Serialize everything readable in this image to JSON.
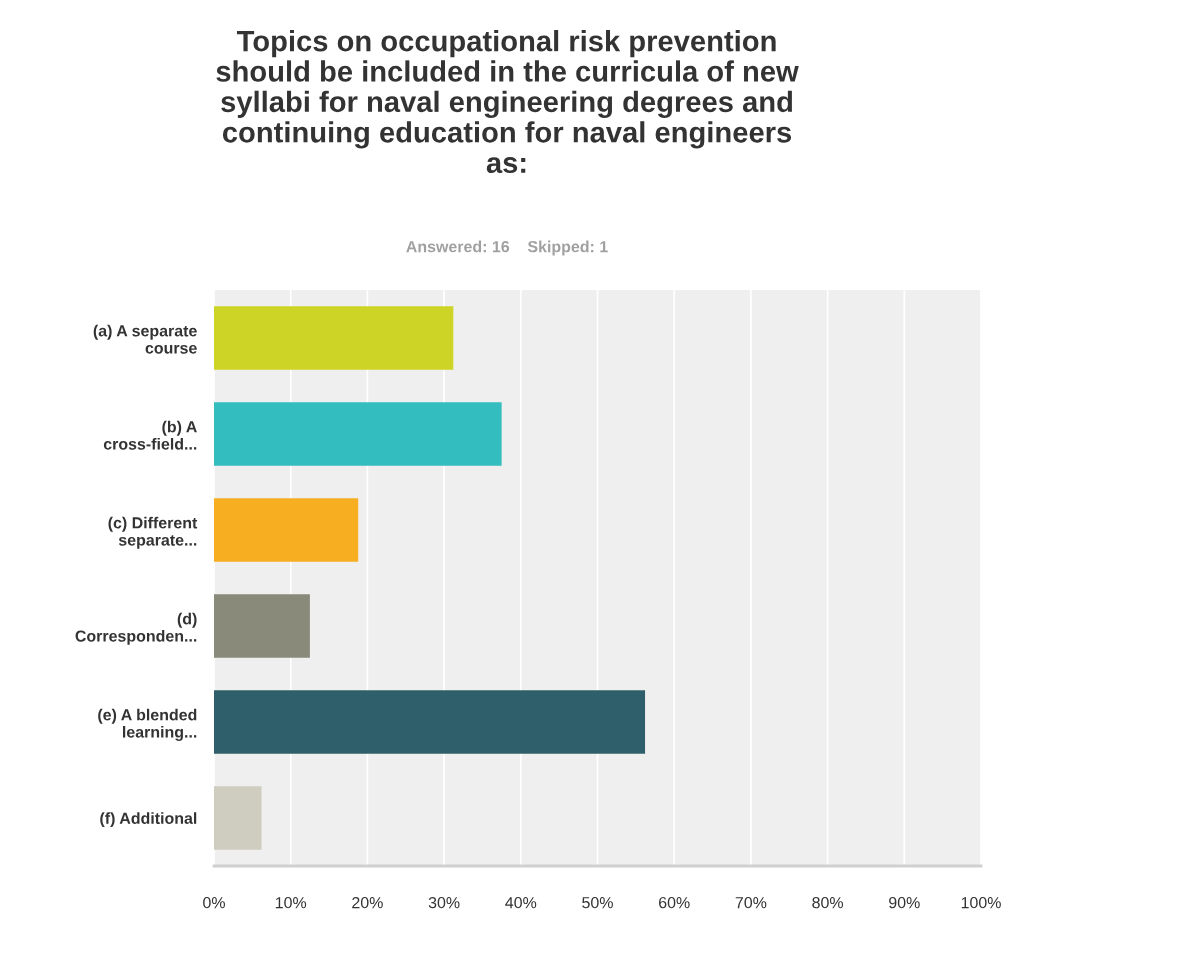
{
  "chart_data": {
    "type": "bar",
    "orientation": "horizontal",
    "title": "Topics on occupational risk prevention\nshould be included in the curricula of new\nsyllabi for naval engineering degrees and\ncontinuing education for naval engineers\nas:",
    "subtitle": "Answered: 16    Skipped: 1",
    "categories": [
      "(a) A separate\ncourse",
      "(b) A\ncross-field...",
      "(c) Different\nseparate...",
      "(d)\nCorresponden...",
      "(e) A blended\nlearning...",
      "(f) Additional"
    ],
    "values": [
      31.2,
      37.5,
      18.8,
      12.5,
      56.2,
      6.2
    ],
    "colors": [
      "#cdd425",
      "#33bdbe",
      "#f7ae21",
      "#898a79",
      "#2e5f6a",
      "#cfcdbf"
    ],
    "xlim": [
      0,
      100
    ],
    "xticks": [
      {
        "value": 0,
        "label": "0%"
      },
      {
        "value": 10,
        "label": "10%"
      },
      {
        "value": 20,
        "label": "20%"
      },
      {
        "value": 30,
        "label": "30%"
      },
      {
        "value": 40,
        "label": "40%"
      },
      {
        "value": 50,
        "label": "50%"
      },
      {
        "value": 60,
        "label": "60%"
      },
      {
        "value": 70,
        "label": "70%"
      },
      {
        "value": 80,
        "label": "80%"
      },
      {
        "value": 90,
        "label": "90%"
      },
      {
        "value": 100,
        "label": "100%"
      }
    ],
    "grid": "x"
  }
}
